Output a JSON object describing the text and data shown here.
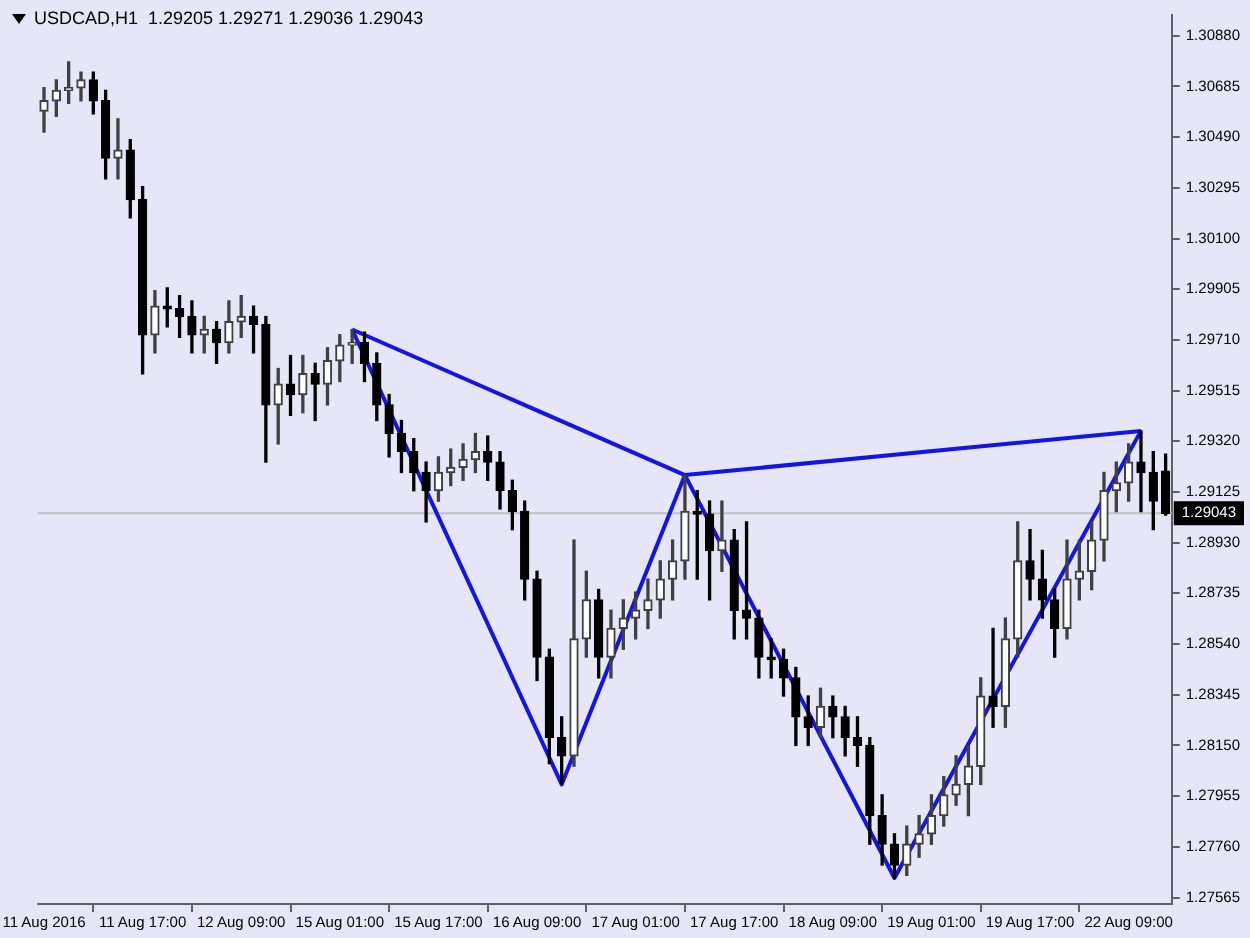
{
  "chart_data": {
    "type": "candlestick",
    "title": "USDCAD,H1  1.29205 1.29271 1.29036 1.29043",
    "categories": [
      "11 Aug 2016",
      null,
      null,
      null,
      null,
      null,
      null,
      null,
      "11 Aug 17:00",
      null,
      null,
      null,
      null,
      null,
      null,
      null,
      "12 Aug 09:00",
      null,
      null,
      null,
      null,
      null,
      null,
      null,
      "15 Aug 01:00",
      null,
      null,
      null,
      null,
      null,
      null,
      null,
      "15 Aug 17:00",
      null,
      null,
      null,
      null,
      null,
      null,
      null,
      "16 Aug 09:00",
      null,
      null,
      null,
      null,
      null,
      null,
      null,
      "17 Aug 01:00",
      null,
      null,
      null,
      null,
      null,
      null,
      null,
      "17 Aug 17:00",
      null,
      null,
      null,
      null,
      null,
      null,
      null,
      "18 Aug 09:00",
      null,
      null,
      null,
      null,
      null,
      null,
      null,
      "19 Aug 01:00",
      null,
      null,
      null,
      null,
      null,
      null,
      null,
      "19 Aug 17:00",
      null,
      null,
      null,
      null,
      null,
      null,
      null,
      "22 Aug 09:00",
      null,
      null,
      null
    ],
    "ohlc": [
      [
        1.3059,
        1.3068,
        1.3051,
        1.3063
      ],
      [
        1.3063,
        1.3071,
        1.3057,
        1.3067
      ],
      [
        1.3067,
        1.3078,
        1.3062,
        1.3068
      ],
      [
        1.3068,
        1.3074,
        1.3063,
        1.3071
      ],
      [
        1.3071,
        1.3074,
        1.3058,
        1.3063
      ],
      [
        1.3063,
        1.3067,
        1.3033,
        1.3041
      ],
      [
        1.3041,
        1.3056,
        1.3033,
        1.3044
      ],
      [
        1.3044,
        1.3048,
        1.3018,
        1.3025
      ],
      [
        1.3025,
        1.303,
        1.2958,
        1.2973
      ],
      [
        1.2973,
        1.299,
        1.2966,
        1.2984
      ],
      [
        1.2984,
        1.2991,
        1.2976,
        1.2983
      ],
      [
        1.2983,
        1.2988,
        1.2972,
        1.298
      ],
      [
        1.298,
        1.2986,
        1.2966,
        1.2973
      ],
      [
        1.2973,
        1.298,
        1.2966,
        1.2975
      ],
      [
        1.2975,
        1.2978,
        1.2962,
        1.297
      ],
      [
        1.297,
        1.2986,
        1.2966,
        1.2978
      ],
      [
        1.2978,
        1.2988,
        1.2972,
        1.298
      ],
      [
        1.298,
        1.2984,
        1.2966,
        1.2977
      ],
      [
        1.2977,
        1.298,
        1.2924,
        1.2946
      ],
      [
        1.2946,
        1.296,
        1.2931,
        1.2954
      ],
      [
        1.2954,
        1.2965,
        1.2942,
        1.295
      ],
      [
        1.295,
        1.2965,
        1.2943,
        1.2958
      ],
      [
        1.2958,
        1.2962,
        1.294,
        1.2954
      ],
      [
        1.2954,
        1.2968,
        1.2946,
        1.2963
      ],
      [
        1.2963,
        1.2973,
        1.2955,
        1.2969
      ],
      [
        1.2969,
        1.2975,
        1.2962,
        1.297
      ],
      [
        1.297,
        1.2974,
        1.2955,
        1.2962
      ],
      [
        1.2962,
        1.2966,
        1.294,
        1.2946
      ],
      [
        1.2946,
        1.295,
        1.2926,
        1.2935
      ],
      [
        1.2935,
        1.294,
        1.292,
        1.2928
      ],
      [
        1.2928,
        1.2933,
        1.2913,
        1.292
      ],
      [
        1.292,
        1.2924,
        1.2901,
        1.2913
      ],
      [
        1.2913,
        1.2926,
        1.2909,
        1.292
      ],
      [
        1.292,
        1.2929,
        1.2915,
        1.2922
      ],
      [
        1.2922,
        1.2931,
        1.2917,
        1.2925
      ],
      [
        1.2925,
        1.2935,
        1.292,
        1.2928
      ],
      [
        1.2928,
        1.2934,
        1.2917,
        1.2924
      ],
      [
        1.2924,
        1.2928,
        1.2906,
        1.2913
      ],
      [
        1.2913,
        1.2917,
        1.2898,
        1.2905
      ],
      [
        1.2905,
        1.2909,
        1.2871,
        1.2879
      ],
      [
        1.2879,
        1.2882,
        1.284,
        1.2849
      ],
      [
        1.2849,
        1.2852,
        1.2808,
        1.2818
      ],
      [
        1.2818,
        1.2826,
        1.28,
        1.2811
      ],
      [
        1.2811,
        1.2894,
        1.2807,
        1.2856
      ],
      [
        1.2856,
        1.2882,
        1.2849,
        1.2871
      ],
      [
        1.2871,
        1.2875,
        1.2841,
        1.2849
      ],
      [
        1.2849,
        1.2867,
        1.2841,
        1.286
      ],
      [
        1.286,
        1.2871,
        1.2852,
        1.2864
      ],
      [
        1.2864,
        1.2874,
        1.2856,
        1.2867
      ],
      [
        1.2867,
        1.2879,
        1.286,
        1.2871
      ],
      [
        1.2871,
        1.2886,
        1.2864,
        1.2879
      ],
      [
        1.2879,
        1.2894,
        1.2871,
        1.2886
      ],
      [
        1.2886,
        1.2919,
        1.2879,
        1.2905
      ],
      [
        1.2905,
        1.2913,
        1.2879,
        1.2904
      ],
      [
        1.2904,
        1.2909,
        1.2871,
        1.289
      ],
      [
        1.289,
        1.2909,
        1.2882,
        1.2894
      ],
      [
        1.2894,
        1.2898,
        1.2856,
        1.2867
      ],
      [
        1.2867,
        1.2901,
        1.2856,
        1.2864
      ],
      [
        1.2864,
        1.2867,
        1.2841,
        1.2849
      ],
      [
        1.2849,
        1.2856,
        1.2841,
        1.2848
      ],
      [
        1.2848,
        1.2852,
        1.2834,
        1.2841
      ],
      [
        1.2841,
        1.2845,
        1.2815,
        1.2826
      ],
      [
        1.2826,
        1.2834,
        1.2815,
        1.2822
      ],
      [
        1.2822,
        1.2837,
        1.2818,
        1.283
      ],
      [
        1.283,
        1.2834,
        1.2818,
        1.2826
      ],
      [
        1.2826,
        1.283,
        1.2811,
        1.2818
      ],
      [
        1.2818,
        1.2826,
        1.2807,
        1.2815
      ],
      [
        1.2815,
        1.2818,
        1.2777,
        1.2788
      ],
      [
        1.2788,
        1.2796,
        1.2769,
        1.2777
      ],
      [
        1.2777,
        1.2781,
        1.2764,
        1.2769
      ],
      [
        1.2769,
        1.2784,
        1.2765,
        1.2777
      ],
      [
        1.2777,
        1.2788,
        1.2772,
        1.2781
      ],
      [
        1.2781,
        1.2796,
        1.2777,
        1.2788
      ],
      [
        1.2788,
        1.2803,
        1.2784,
        1.2796
      ],
      [
        1.2796,
        1.2811,
        1.2792,
        1.28
      ],
      [
        1.28,
        1.2815,
        1.2788,
        1.2807
      ],
      [
        1.2807,
        1.2841,
        1.28,
        1.2834
      ],
      [
        1.2834,
        1.286,
        1.2822,
        1.283
      ],
      [
        1.283,
        1.2864,
        1.2822,
        1.2856
      ],
      [
        1.2856,
        1.2901,
        1.2849,
        1.2886
      ],
      [
        1.2886,
        1.2898,
        1.2871,
        1.2879
      ],
      [
        1.2879,
        1.289,
        1.2864,
        1.2871
      ],
      [
        1.2871,
        1.2875,
        1.2849,
        1.286
      ],
      [
        1.286,
        1.2894,
        1.2856,
        1.2879
      ],
      [
        1.2879,
        1.2894,
        1.2871,
        1.2882
      ],
      [
        1.2882,
        1.2901,
        1.2875,
        1.2894
      ],
      [
        1.2894,
        1.292,
        1.2886,
        1.2913
      ],
      [
        1.2913,
        1.2924,
        1.2905,
        1.2916
      ],
      [
        1.2916,
        1.2931,
        1.2909,
        1.2924
      ],
      [
        1.2924,
        1.2936,
        1.2905,
        1.292
      ],
      [
        1.292,
        1.2928,
        1.2898,
        1.2909
      ],
      [
        1.29205,
        1.29271,
        1.29036,
        1.29043
      ]
    ],
    "series": [
      {
        "type": "line",
        "color": "#1414e6",
        "values": [
          null,
          null,
          null,
          null,
          null,
          null,
          null,
          null,
          null,
          null,
          null,
          null,
          null,
          null,
          null,
          null,
          null,
          null,
          null,
          null,
          null,
          null,
          null,
          null,
          null,
          1.2975,
          null,
          null,
          null,
          null,
          null,
          null,
          null,
          null,
          null,
          null,
          null,
          null,
          null,
          null,
          null,
          null,
          1.28,
          null,
          null,
          null,
          null,
          null,
          null,
          null,
          null,
          null,
          1.2919,
          null,
          null,
          null,
          null,
          null,
          null,
          null,
          null,
          null,
          null,
          null,
          null,
          null,
          null,
          null,
          null,
          1.2764,
          null,
          null,
          null,
          null,
          null,
          null,
          null,
          null,
          null,
          null,
          null,
          null,
          null,
          null,
          null,
          null,
          null,
          null,
          null,
          1.2936,
          null,
          null
        ]
      },
      {
        "type": "line",
        "color": "#1414e6",
        "values": [
          null,
          null,
          null,
          null,
          null,
          null,
          null,
          null,
          null,
          null,
          null,
          null,
          null,
          null,
          null,
          null,
          null,
          null,
          null,
          null,
          null,
          null,
          null,
          null,
          null,
          1.2975,
          null,
          null,
          null,
          null,
          null,
          null,
          null,
          null,
          null,
          null,
          null,
          null,
          null,
          null,
          null,
          null,
          null,
          null,
          null,
          null,
          null,
          null,
          null,
          null,
          null,
          null,
          1.2919,
          null,
          null,
          null,
          null,
          null,
          null,
          null,
          null,
          null,
          null,
          null,
          null,
          null,
          null,
          null,
          null,
          null,
          null,
          null,
          null,
          null,
          null,
          null,
          null,
          null,
          null,
          null,
          null,
          null,
          null,
          null,
          null,
          null,
          null,
          null,
          null,
          null,
          null,
          null
        ]
      },
      {
        "type": "line",
        "color": "#1414e6",
        "values": [
          null,
          null,
          null,
          null,
          null,
          null,
          null,
          null,
          null,
          null,
          null,
          null,
          null,
          null,
          null,
          null,
          null,
          null,
          null,
          null,
          null,
          null,
          null,
          null,
          null,
          null,
          null,
          null,
          null,
          null,
          null,
          null,
          null,
          null,
          null,
          null,
          null,
          null,
          null,
          null,
          null,
          null,
          null,
          null,
          null,
          null,
          null,
          null,
          null,
          null,
          null,
          null,
          1.2919,
          null,
          null,
          null,
          null,
          null,
          null,
          null,
          null,
          null,
          null,
          null,
          null,
          null,
          null,
          null,
          null,
          null,
          null,
          null,
          null,
          null,
          null,
          null,
          null,
          null,
          null,
          null,
          null,
          null,
          null,
          null,
          null,
          null,
          null,
          null,
          null,
          1.2936,
          null,
          null
        ]
      }
    ],
    "ylim": [
      1.2754,
      1.3096
    ],
    "yticks": [
      {
        "value": 1.27565,
        "label": "1.27565"
      },
      {
        "value": 1.2776,
        "label": "1.27760"
      },
      {
        "value": 1.27955,
        "label": "1.27955"
      },
      {
        "value": 1.2815,
        "label": "1.28150"
      },
      {
        "value": 1.28345,
        "label": "1.28345"
      },
      {
        "value": 1.2854,
        "label": "1.28540"
      },
      {
        "value": 1.28735,
        "label": "1.28735"
      },
      {
        "value": 1.2893,
        "label": "1.28930"
      },
      {
        "value": 1.29125,
        "label": "1.29125"
      },
      {
        "value": 1.2932,
        "label": "1.29320"
      },
      {
        "value": 1.29515,
        "label": "1.29515"
      },
      {
        "value": 1.2971,
        "label": "1.29710"
      },
      {
        "value": 1.29905,
        "label": "1.29905"
      },
      {
        "value": 1.301,
        "label": "1.30100"
      },
      {
        "value": 1.30295,
        "label": "1.30295"
      },
      {
        "value": 1.3049,
        "label": "1.30490"
      },
      {
        "value": 1.30685,
        "label": "1.30685"
      },
      {
        "value": 1.3088,
        "label": "1.30880"
      }
    ],
    "ref_lines": [
      {
        "axis": "y",
        "value": 1.29043,
        "label": "1.29043",
        "color": "#c0c0c0"
      }
    ],
    "grid": false,
    "legend": false,
    "marker": "none"
  }
}
